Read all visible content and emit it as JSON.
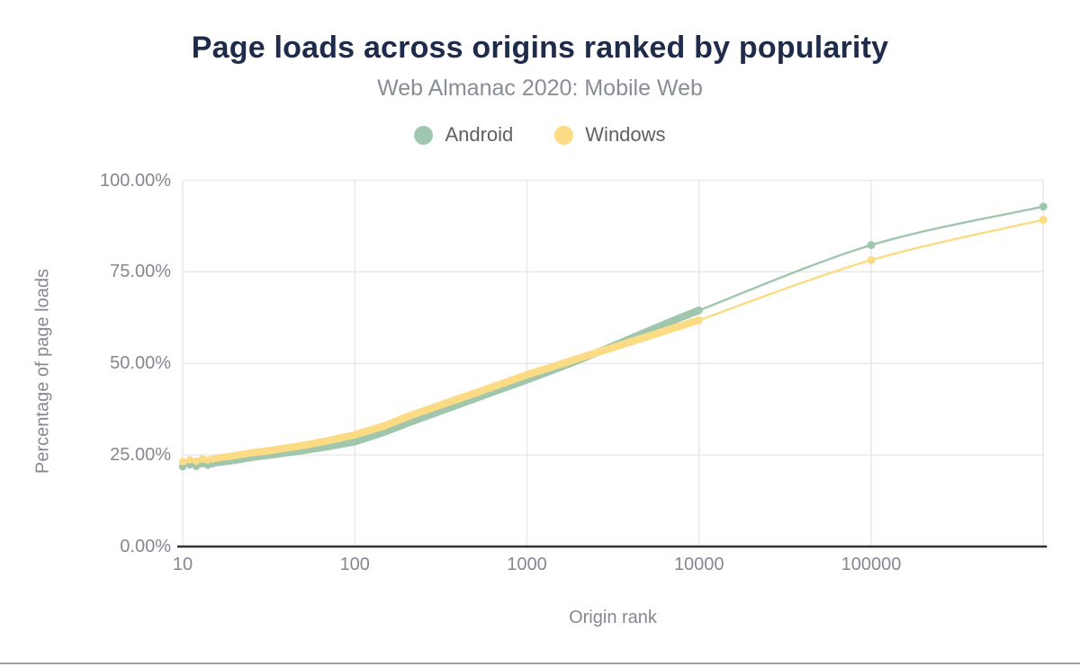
{
  "chart_data": {
    "type": "line",
    "title": "Page loads across origins ranked by popularity",
    "subtitle": "Web Almanac 2020: Mobile Web",
    "xlabel": "Origin rank",
    "ylabel": "Percentage of page loads",
    "x_scale": "log",
    "x_range": [
      10,
      1000000
    ],
    "y_range": [
      0,
      100
    ],
    "grid": true,
    "legend_position": "top",
    "grid_color": "#e9e9e9",
    "axis_line_color": "#2f3337",
    "x_ticks": [
      {
        "value": 10,
        "label": "10"
      },
      {
        "value": 100,
        "label": "100"
      },
      {
        "value": 1000,
        "label": "1000"
      },
      {
        "value": 10000,
        "label": "10000"
      },
      {
        "value": 100000,
        "label": "100000"
      }
    ],
    "y_ticks": [
      {
        "value": 0,
        "label": "0.00%"
      },
      {
        "value": 25,
        "label": "25.00%"
      },
      {
        "value": 50,
        "label": "50.00%"
      },
      {
        "value": 75,
        "label": "75.00%"
      },
      {
        "value": 100,
        "label": "100.00%"
      }
    ],
    "series": [
      {
        "name": "Android",
        "color": "#a0c6ae",
        "dense_marker_max_x": 10000,
        "points": [
          [
            10,
            21.8
          ],
          [
            11,
            22.3
          ],
          [
            12,
            21.9
          ],
          [
            13,
            22.6
          ],
          [
            14,
            22.2
          ],
          [
            16,
            22.9
          ],
          [
            18,
            23.2
          ],
          [
            20,
            23.5
          ],
          [
            23,
            24.0
          ],
          [
            26,
            24.4
          ],
          [
            30,
            24.8
          ],
          [
            40,
            25.6
          ],
          [
            50,
            26.2
          ],
          [
            70,
            27.3
          ],
          [
            100,
            28.6
          ],
          [
            150,
            31.3
          ],
          [
            200,
            33.6
          ],
          [
            300,
            36.6
          ],
          [
            500,
            40.4
          ],
          [
            700,
            42.9
          ],
          [
            1000,
            45.5
          ],
          [
            1500,
            48.6
          ],
          [
            2000,
            50.9
          ],
          [
            3000,
            54.3
          ],
          [
            5000,
            58.7
          ],
          [
            7000,
            61.6
          ],
          [
            10000,
            64.5
          ],
          [
            100000,
            82.3
          ],
          [
            1000000,
            92.8
          ]
        ]
      },
      {
        "name": "Windows",
        "color": "#fbdc85",
        "dense_marker_max_x": 10000,
        "points": [
          [
            10,
            23.2
          ],
          [
            11,
            23.7
          ],
          [
            12,
            23.3
          ],
          [
            13,
            23.9
          ],
          [
            14,
            23.6
          ],
          [
            16,
            24.2
          ],
          [
            18,
            24.5
          ],
          [
            20,
            24.8
          ],
          [
            23,
            25.3
          ],
          [
            26,
            25.7
          ],
          [
            30,
            26.0
          ],
          [
            40,
            26.9
          ],
          [
            50,
            27.6
          ],
          [
            70,
            28.9
          ],
          [
            100,
            30.5
          ],
          [
            150,
            33.0
          ],
          [
            200,
            35.4
          ],
          [
            300,
            38.3
          ],
          [
            500,
            41.9
          ],
          [
            700,
            44.3
          ],
          [
            1000,
            46.9
          ],
          [
            1500,
            49.5
          ],
          [
            2000,
            51.4
          ],
          [
            3000,
            54.0
          ],
          [
            5000,
            57.3
          ],
          [
            7000,
            59.5
          ],
          [
            10000,
            61.8
          ],
          [
            100000,
            78.2
          ],
          [
            1000000,
            89.2
          ]
        ]
      }
    ]
  }
}
